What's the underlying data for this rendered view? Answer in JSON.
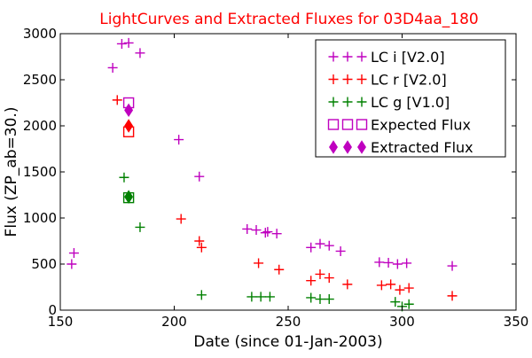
{
  "chart_data": {
    "type": "scatter",
    "title": "LightCurves and Extracted Fluxes for 03D4aa_180",
    "title_color": "#ff0000",
    "xlabel": "Date (since 01-Jan-2003)",
    "ylabel": "Flux (ZP_ab=30.)",
    "xlim": [
      150,
      350
    ],
    "ylim": [
      0,
      3000
    ],
    "xticks": [
      150,
      200,
      250,
      300,
      350
    ],
    "yticks": [
      0,
      500,
      1000,
      1500,
      2000,
      2500,
      3000
    ],
    "grid": false,
    "legend_position": "top-right",
    "series": [
      {
        "name": "LC i [V2.0]",
        "marker": "plus",
        "color": "#bf00bf",
        "points": [
          [
            155,
            500
          ],
          [
            156,
            620
          ],
          [
            173,
            2630
          ],
          [
            177,
            2890
          ],
          [
            180,
            2900
          ],
          [
            185,
            2790
          ],
          [
            202,
            1850
          ],
          [
            211,
            1450
          ],
          [
            232,
            880
          ],
          [
            236,
            870
          ],
          [
            240,
            840
          ],
          [
            241,
            850
          ],
          [
            245,
            830
          ],
          [
            260,
            680
          ],
          [
            264,
            720
          ],
          [
            268,
            700
          ],
          [
            273,
            640
          ],
          [
            290,
            520
          ],
          [
            294,
            515
          ],
          [
            298,
            500
          ],
          [
            302,
            510
          ],
          [
            322,
            480
          ]
        ]
      },
      {
        "name": "LC r [V2.0]",
        "marker": "plus",
        "color": "#ff0000",
        "points": [
          [
            175,
            2280
          ],
          [
            203,
            990
          ],
          [
            211,
            750
          ],
          [
            212,
            680
          ],
          [
            237,
            510
          ],
          [
            246,
            440
          ],
          [
            260,
            320
          ],
          [
            264,
            390
          ],
          [
            268,
            350
          ],
          [
            276,
            280
          ],
          [
            291,
            270
          ],
          [
            295,
            280
          ],
          [
            299,
            220
          ],
          [
            303,
            240
          ],
          [
            322,
            155
          ]
        ]
      },
      {
        "name": "LC g [V1.0]",
        "marker": "plus",
        "color": "#008000",
        "points": [
          [
            178,
            1440
          ],
          [
            185,
            900
          ],
          [
            212,
            165
          ],
          [
            234,
            145
          ],
          [
            238,
            145
          ],
          [
            242,
            145
          ],
          [
            260,
            135
          ],
          [
            264,
            120
          ],
          [
            268,
            120
          ],
          [
            297,
            90
          ],
          [
            300,
            40
          ],
          [
            303,
            65
          ]
        ]
      },
      {
        "name": "Expected Flux",
        "marker": "square-open",
        "color": "#bf00bf",
        "points": [
          [
            180,
            2250
          ],
          [
            180,
            1935
          ],
          [
            180,
            1220
          ]
        ],
        "point_colors": [
          "#bf00bf",
          "#ff0000",
          "#008000"
        ]
      },
      {
        "name": "Extracted Flux",
        "marker": "diamond",
        "color": "#bf00bf",
        "points": [
          [
            180,
            2170
          ],
          [
            180,
            2000
          ],
          [
            180,
            1230
          ]
        ],
        "point_colors": [
          "#bf00bf",
          "#ff0000",
          "#008000"
        ]
      }
    ]
  }
}
